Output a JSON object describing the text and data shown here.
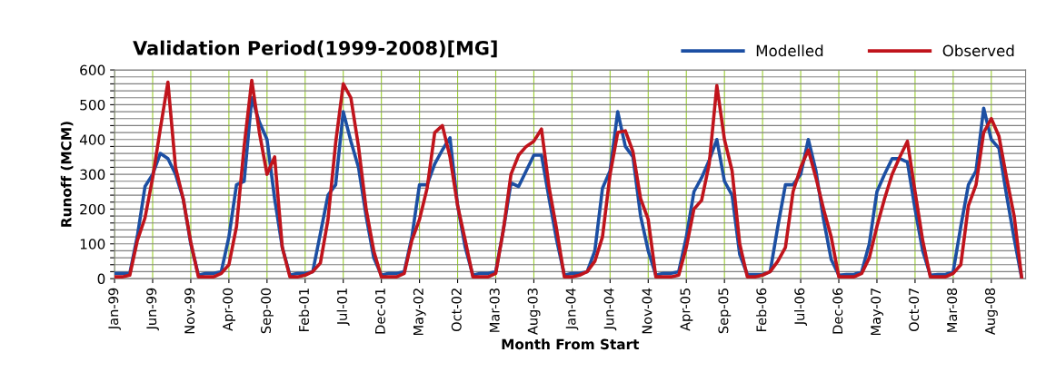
{
  "chart_data": {
    "type": "line",
    "title": "Validation Period(1999-2008)[MG]",
    "xlabel": "Month From Start",
    "ylabel": "Runoff (MCM)",
    "categories": [
      "Jan-99",
      null,
      null,
      null,
      null,
      "Jun-99",
      null,
      null,
      null,
      null,
      "Nov-99",
      null,
      null,
      null,
      null,
      "Apr-00",
      null,
      null,
      null,
      null,
      "Sep-00",
      null,
      null,
      null,
      null,
      "Feb-01",
      null,
      null,
      null,
      null,
      "Jul-01",
      null,
      null,
      null,
      null,
      "Dec-01",
      null,
      null,
      null,
      null,
      "May-02",
      null,
      null,
      null,
      null,
      "Oct-02",
      null,
      null,
      null,
      null,
      "Mar-03",
      null,
      null,
      null,
      null,
      "Aug-03",
      null,
      null,
      null,
      null,
      "Jan-04",
      null,
      null,
      null,
      null,
      "Jun-04",
      null,
      null,
      null,
      null,
      "Nov-04",
      null,
      null,
      null,
      null,
      "Apr-05",
      null,
      null,
      null,
      null,
      "Sep-05",
      null,
      null,
      null,
      null,
      "Feb-06",
      null,
      null,
      null,
      null,
      "Jul-06",
      null,
      null,
      null,
      null,
      "Dec-06",
      null,
      null,
      null,
      null,
      "May-07",
      null,
      null,
      null,
      null,
      "Oct-07",
      null,
      null,
      null,
      null,
      "Mar-08",
      null,
      null,
      null,
      null,
      "Aug-08",
      null,
      null,
      null,
      null
    ],
    "series": [
      {
        "name": "Modelled",
        "color": "#1c4fa3",
        "values": [
          15,
          15,
          15,
          123,
          265,
          300,
          360,
          345,
          300,
          230,
          100,
          10,
          15,
          15,
          20,
          120,
          270,
          280,
          520,
          450,
          400,
          230,
          90,
          10,
          15,
          15,
          20,
          130,
          240,
          270,
          480,
          395,
          320,
          180,
          60,
          10,
          15,
          15,
          20,
          120,
          270,
          270,
          330,
          370,
          405,
          210,
          90,
          10,
          15,
          15,
          20,
          140,
          275,
          265,
          310,
          355,
          355,
          230,
          110,
          10,
          15,
          15,
          20,
          80,
          260,
          310,
          480,
          380,
          350,
          180,
          80,
          10,
          15,
          15,
          20,
          120,
          250,
          290,
          340,
          400,
          280,
          240,
          70,
          12,
          12,
          12,
          20,
          150,
          270,
          270,
          300,
          400,
          310,
          170,
          55,
          10,
          12,
          12,
          20,
          100,
          250,
          300,
          345,
          345,
          335,
          200,
          80,
          10,
          12,
          12,
          20,
          150,
          270,
          310,
          490,
          400,
          375,
          240,
          115,
          0
        ]
      },
      {
        "name": "Observed",
        "color": "#c0141c",
        "values": [
          5,
          5,
          10,
          110,
          175,
          290,
          430,
          565,
          320,
          230,
          105,
          5,
          5,
          5,
          15,
          40,
          150,
          380,
          570,
          420,
          300,
          350,
          90,
          5,
          5,
          10,
          20,
          45,
          170,
          390,
          560,
          520,
          380,
          200,
          80,
          5,
          5,
          5,
          15,
          110,
          170,
          260,
          420,
          440,
          350,
          210,
          110,
          5,
          5,
          5,
          15,
          140,
          300,
          355,
          380,
          395,
          430,
          262,
          140,
          5,
          5,
          10,
          20,
          50,
          120,
          300,
          420,
          425,
          365,
          230,
          170,
          5,
          5,
          5,
          10,
          90,
          200,
          225,
          330,
          555,
          400,
          310,
          100,
          5,
          5,
          10,
          20,
          50,
          90,
          250,
          320,
          370,
          290,
          200,
          120,
          5,
          5,
          5,
          15,
          60,
          150,
          230,
          300,
          350,
          395,
          250,
          110,
          5,
          5,
          5,
          15,
          40,
          210,
          270,
          420,
          460,
          410,
          290,
          180,
          0
        ]
      }
    ],
    "ylim": [
      0,
      600
    ],
    "yticks": [
      0,
      {
        "value": 20,
        "label": null
      },
      {
        "value": 40,
        "label": null
      },
      {
        "value": 60,
        "label": null
      },
      {
        "value": 80,
        "label": null
      },
      100,
      {
        "value": 120,
        "label": null
      },
      {
        "value": 140,
        "label": null
      },
      {
        "value": 160,
        "label": null
      },
      {
        "value": 180,
        "label": null
      },
      200,
      {
        "value": 220,
        "label": null
      },
      {
        "value": 240,
        "label": null
      },
      {
        "value": 260,
        "label": null
      },
      {
        "value": 280,
        "label": null
      },
      300,
      {
        "value": 320,
        "label": null
      },
      {
        "value": 340,
        "label": null
      },
      {
        "value": 360,
        "label": null
      },
      {
        "value": 380,
        "label": null
      },
      400,
      {
        "value": 420,
        "label": null
      },
      {
        "value": 440,
        "label": null
      },
      {
        "value": 460,
        "label": null
      },
      {
        "value": 480,
        "label": null
      },
      500,
      {
        "value": 520,
        "label": null
      },
      {
        "value": 540,
        "label": null
      },
      {
        "value": 560,
        "label": null
      },
      {
        "value": 580,
        "label": null
      },
      600
    ],
    "grid": true,
    "legend": "top right",
    "line_style": "solid"
  }
}
